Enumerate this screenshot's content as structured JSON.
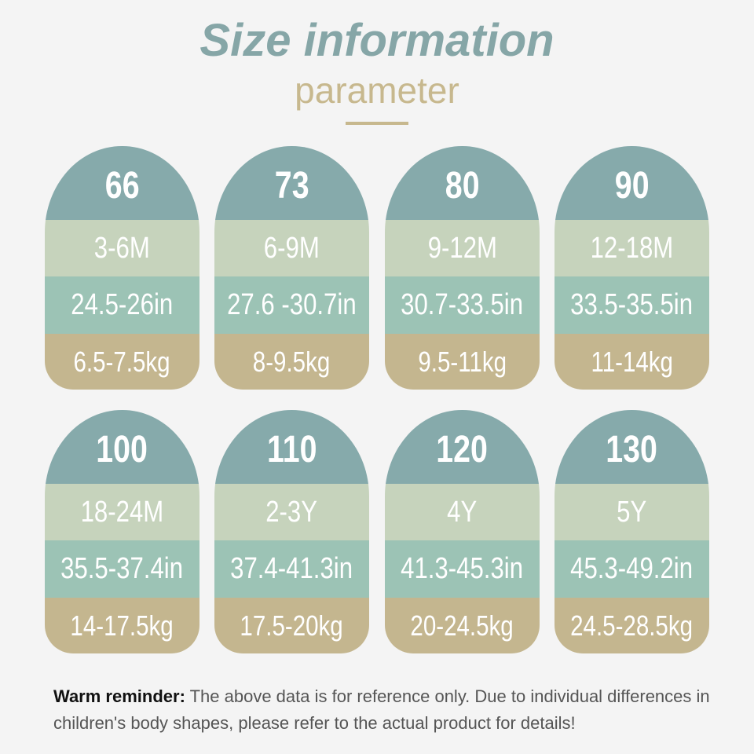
{
  "header": {
    "title": "Size information",
    "subtitle": "parameter"
  },
  "cards": [
    {
      "size": "66",
      "age": "3-6M",
      "height": "24.5-26in",
      "weight": "6.5-7.5kg"
    },
    {
      "size": "73",
      "age": "6-9M",
      "height": "27.6 -30.7in",
      "weight": "8-9.5kg"
    },
    {
      "size": "80",
      "age": "9-12M",
      "height": "30.7-33.5in",
      "weight": "9.5-11kg"
    },
    {
      "size": "90",
      "age": "12-18M",
      "height": "33.5-35.5in",
      "weight": "11-14kg"
    },
    {
      "size": "100",
      "age": "18-24M",
      "height": "35.5-37.4in",
      "weight": "14-17.5kg"
    },
    {
      "size": "110",
      "age": "2-3Y",
      "height": "37.4-41.3in",
      "weight": "17.5-20kg"
    },
    {
      "size": "120",
      "age": "4Y",
      "height": "41.3-45.3in",
      "weight": "20-24.5kg"
    },
    {
      "size": "130",
      "age": "5Y",
      "height": "45.3-49.2in",
      "weight": "24.5-28.5kg"
    }
  ],
  "reminder": {
    "label": "Warm reminder:",
    "text": "The above data is for reference only. Due to individual differences in children's body shapes, please refer to the actual product for details!"
  }
}
